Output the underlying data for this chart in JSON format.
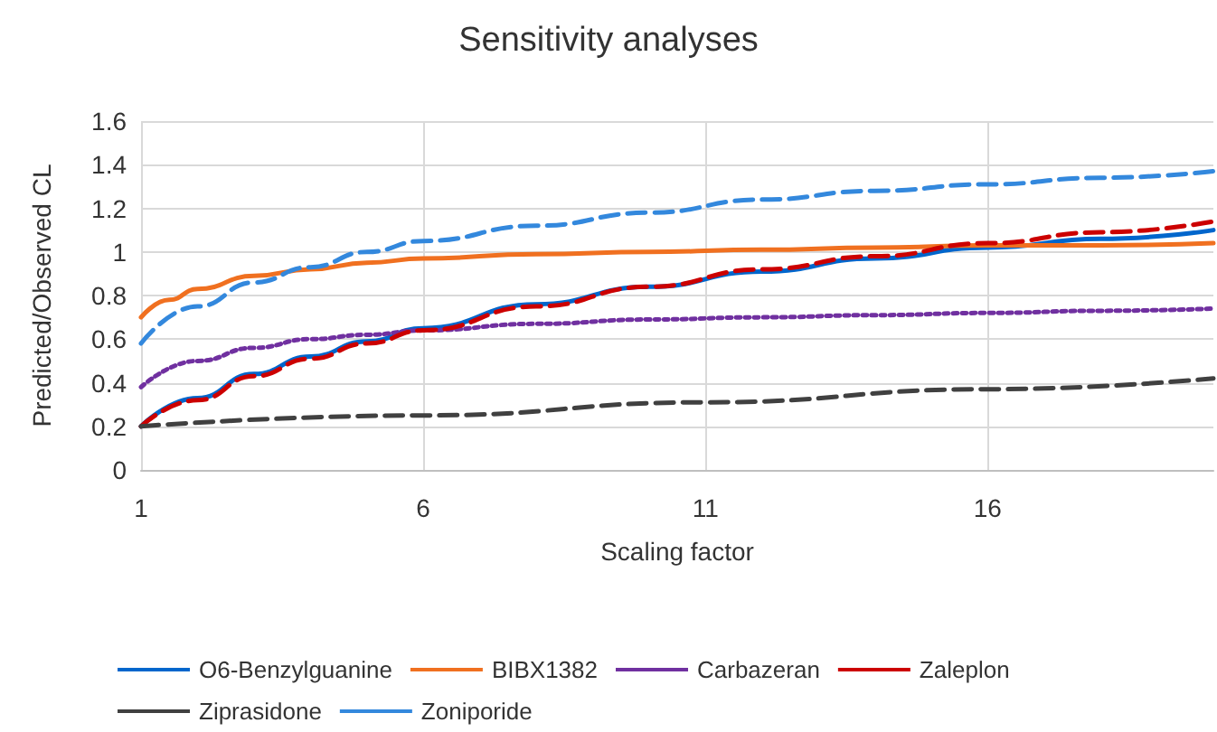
{
  "chart_data": {
    "type": "line",
    "title": "Sensitivity analyses",
    "xlabel": "Scaling factor",
    "ylabel": "Predicted/Observed CL",
    "xlim": [
      1,
      20
    ],
    "xticks": [
      1,
      6,
      11,
      16
    ],
    "ylim": [
      0,
      1.6
    ],
    "yticks": [
      0,
      0.2,
      0.4,
      0.6,
      0.8,
      1,
      1.2,
      1.4,
      1.6
    ],
    "grid": true,
    "legend": "bottom",
    "marker": "none",
    "series": [
      {
        "name": "O6-Benzylguanine",
        "color": "#0066cc",
        "line_style": "solid",
        "x": [
          1,
          2,
          3,
          4,
          5,
          6,
          8,
          10,
          12,
          14,
          16,
          18,
          20
        ],
        "values": [
          0.2,
          0.33,
          0.44,
          0.52,
          0.59,
          0.65,
          0.76,
          0.84,
          0.91,
          0.97,
          1.02,
          1.06,
          1.1
        ]
      },
      {
        "name": "BIBX1382",
        "color": "#f07020",
        "line_style": "solid",
        "x": [
          1,
          1.5,
          2,
          3,
          4,
          5,
          6,
          8,
          10,
          12,
          14,
          16,
          18,
          20
        ],
        "values": [
          0.7,
          0.78,
          0.83,
          0.89,
          0.92,
          0.95,
          0.97,
          0.99,
          1.0,
          1.01,
          1.02,
          1.03,
          1.03,
          1.04
        ]
      },
      {
        "name": "Carbazeran",
        "color": "#7030a0",
        "line_style": "dotted",
        "x": [
          1,
          2,
          3,
          4,
          5,
          6,
          8,
          10,
          12,
          14,
          16,
          18,
          20
        ],
        "values": [
          0.38,
          0.5,
          0.56,
          0.6,
          0.62,
          0.64,
          0.67,
          0.69,
          0.7,
          0.71,
          0.72,
          0.73,
          0.74
        ]
      },
      {
        "name": "Zaleplon",
        "color": "#cc0000",
        "line_style": "dashed",
        "x": [
          1,
          2,
          3,
          4,
          5,
          6,
          8,
          10,
          12,
          14,
          16,
          18,
          20
        ],
        "values": [
          0.2,
          0.32,
          0.43,
          0.51,
          0.58,
          0.64,
          0.75,
          0.84,
          0.92,
          0.98,
          1.04,
          1.09,
          1.14
        ]
      },
      {
        "name": "Ziprasidone",
        "color": "#404040",
        "line_style": "dashed",
        "x": [
          1,
          6,
          11,
          16,
          20
        ],
        "values": [
          0.2,
          0.25,
          0.31,
          0.37,
          0.42
        ]
      },
      {
        "name": "Zoniporide",
        "color": "#3388dd",
        "line_style": "dashed",
        "x": [
          1,
          2,
          3,
          4,
          5,
          6,
          8,
          10,
          12,
          14,
          16,
          18,
          20
        ],
        "values": [
          0.58,
          0.75,
          0.86,
          0.93,
          1.0,
          1.05,
          1.12,
          1.18,
          1.24,
          1.28,
          1.31,
          1.34,
          1.37
        ]
      }
    ]
  }
}
